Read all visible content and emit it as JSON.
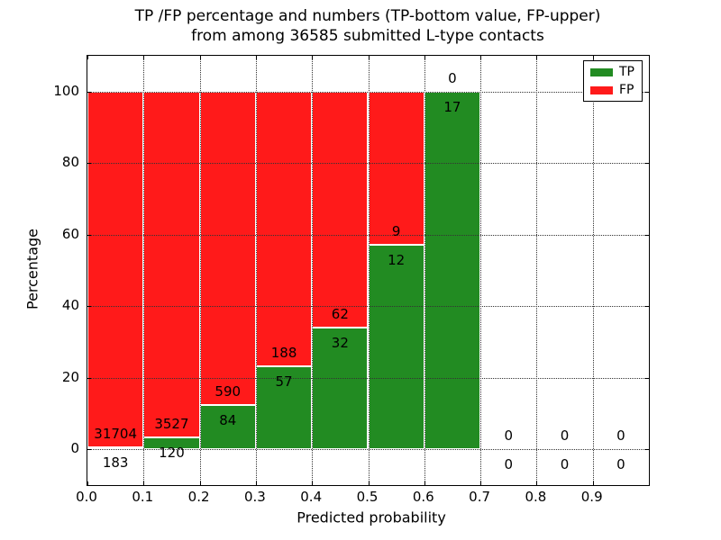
{
  "title": {
    "line1": "TP /FP percentage and numbers (TP-bottom value, FP-upper)",
    "line2": "from among 36585 submitted L-type contacts"
  },
  "axes": {
    "xlabel": "Predicted probability",
    "ylabel": "Percentage"
  },
  "legend": {
    "position": "upper right",
    "entries": [
      {
        "label": "TP",
        "color": "#228b22"
      },
      {
        "label": "FP",
        "color": "#ff1a1a"
      }
    ]
  },
  "chart_data": {
    "type": "bar",
    "stacked": true,
    "title": "TP /FP percentage and numbers (TP-bottom value, FP-upper) from among 36585 submitted L-type contacts",
    "xlabel": "Predicted probability",
    "ylabel": "Percentage",
    "xlim": [
      0.0,
      1.0
    ],
    "ylim": [
      -10,
      110
    ],
    "x_tick_labels": [
      "0.0",
      "0.1",
      "0.2",
      "0.3",
      "0.4",
      "0.5",
      "0.6",
      "0.7",
      "0.8",
      "0.9"
    ],
    "y_tick_values": [
      0,
      20,
      40,
      60,
      80,
      100
    ],
    "grid": "dotted, both axes",
    "legend_position": "upper right",
    "total_contacts": 36585,
    "series": [
      {
        "name": "TP",
        "color": "#228b22",
        "position": "bottom"
      },
      {
        "name": "FP",
        "color": "#ff1a1a",
        "position": "upper"
      }
    ],
    "bins": [
      {
        "x_start": 0.0,
        "x_end": 0.1,
        "tp": 183,
        "fp": 31704,
        "tp_pct": 0.57,
        "fp_pct": 99.43
      },
      {
        "x_start": 0.1,
        "x_end": 0.2,
        "tp": 120,
        "fp": 3527,
        "tp_pct": 3.29,
        "fp_pct": 96.71
      },
      {
        "x_start": 0.2,
        "x_end": 0.3,
        "tp": 84,
        "fp": 590,
        "tp_pct": 12.46,
        "fp_pct": 87.54
      },
      {
        "x_start": 0.3,
        "x_end": 0.4,
        "tp": 57,
        "fp": 188,
        "tp_pct": 23.27,
        "fp_pct": 76.73
      },
      {
        "x_start": 0.4,
        "x_end": 0.5,
        "tp": 32,
        "fp": 62,
        "tp_pct": 34.04,
        "fp_pct": 65.96
      },
      {
        "x_start": 0.5,
        "x_end": 0.6,
        "tp": 12,
        "fp": 9,
        "tp_pct": 57.14,
        "fp_pct": 42.86
      },
      {
        "x_start": 0.6,
        "x_end": 0.7,
        "tp": 17,
        "fp": 0,
        "tp_pct": 100.0,
        "fp_pct": 0.0
      },
      {
        "x_start": 0.7,
        "x_end": 0.8,
        "tp": 0,
        "fp": 0,
        "tp_pct": null,
        "fp_pct": null
      },
      {
        "x_start": 0.8,
        "x_end": 0.9,
        "tp": 0,
        "fp": 0,
        "tp_pct": null,
        "fp_pct": null
      },
      {
        "x_start": 0.9,
        "x_end": 1.0,
        "tp": 0,
        "fp": 0,
        "tp_pct": null,
        "fp_pct": null
      }
    ]
  }
}
